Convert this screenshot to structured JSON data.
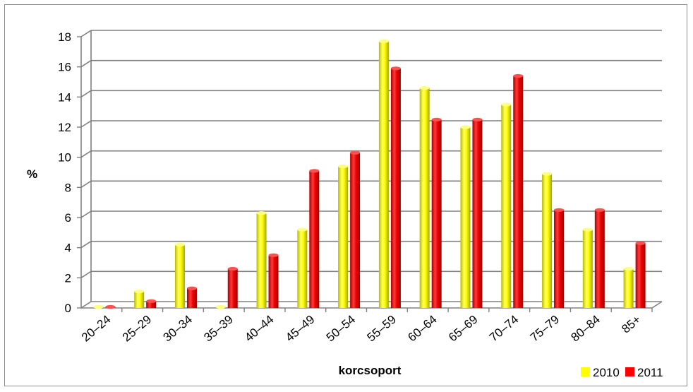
{
  "chart_data": {
    "type": "bar",
    "categories": [
      "20–24",
      "25–29",
      "30–34",
      "35–39",
      "40–44",
      "45–49",
      "50–54",
      "55–59",
      "60–64",
      "65–69",
      "70–74",
      "75–79",
      "80–84",
      "85+"
    ],
    "series": [
      {
        "name": "2010",
        "color": "#ffff00",
        "values": [
          0.05,
          1.1,
          4.2,
          0.05,
          6.3,
          5.2,
          9.4,
          17.7,
          14.6,
          12.0,
          13.5,
          8.9,
          5.2,
          2.6
        ]
      },
      {
        "name": "2011",
        "color": "#ff0000",
        "values": [
          0.05,
          0.45,
          1.3,
          2.6,
          3.5,
          9.1,
          10.3,
          15.9,
          12.5,
          12.5,
          15.4,
          6.5,
          6.5,
          4.3
        ]
      }
    ],
    "yticks": [
      "0",
      "2",
      "4",
      "6",
      "8",
      "10",
      "12",
      "14",
      "16",
      "18"
    ],
    "ylim": [
      0,
      18
    ],
    "xlabel": "korcsoport",
    "ylabel": "%",
    "grid": true,
    "legend_position": "bottom-right"
  }
}
